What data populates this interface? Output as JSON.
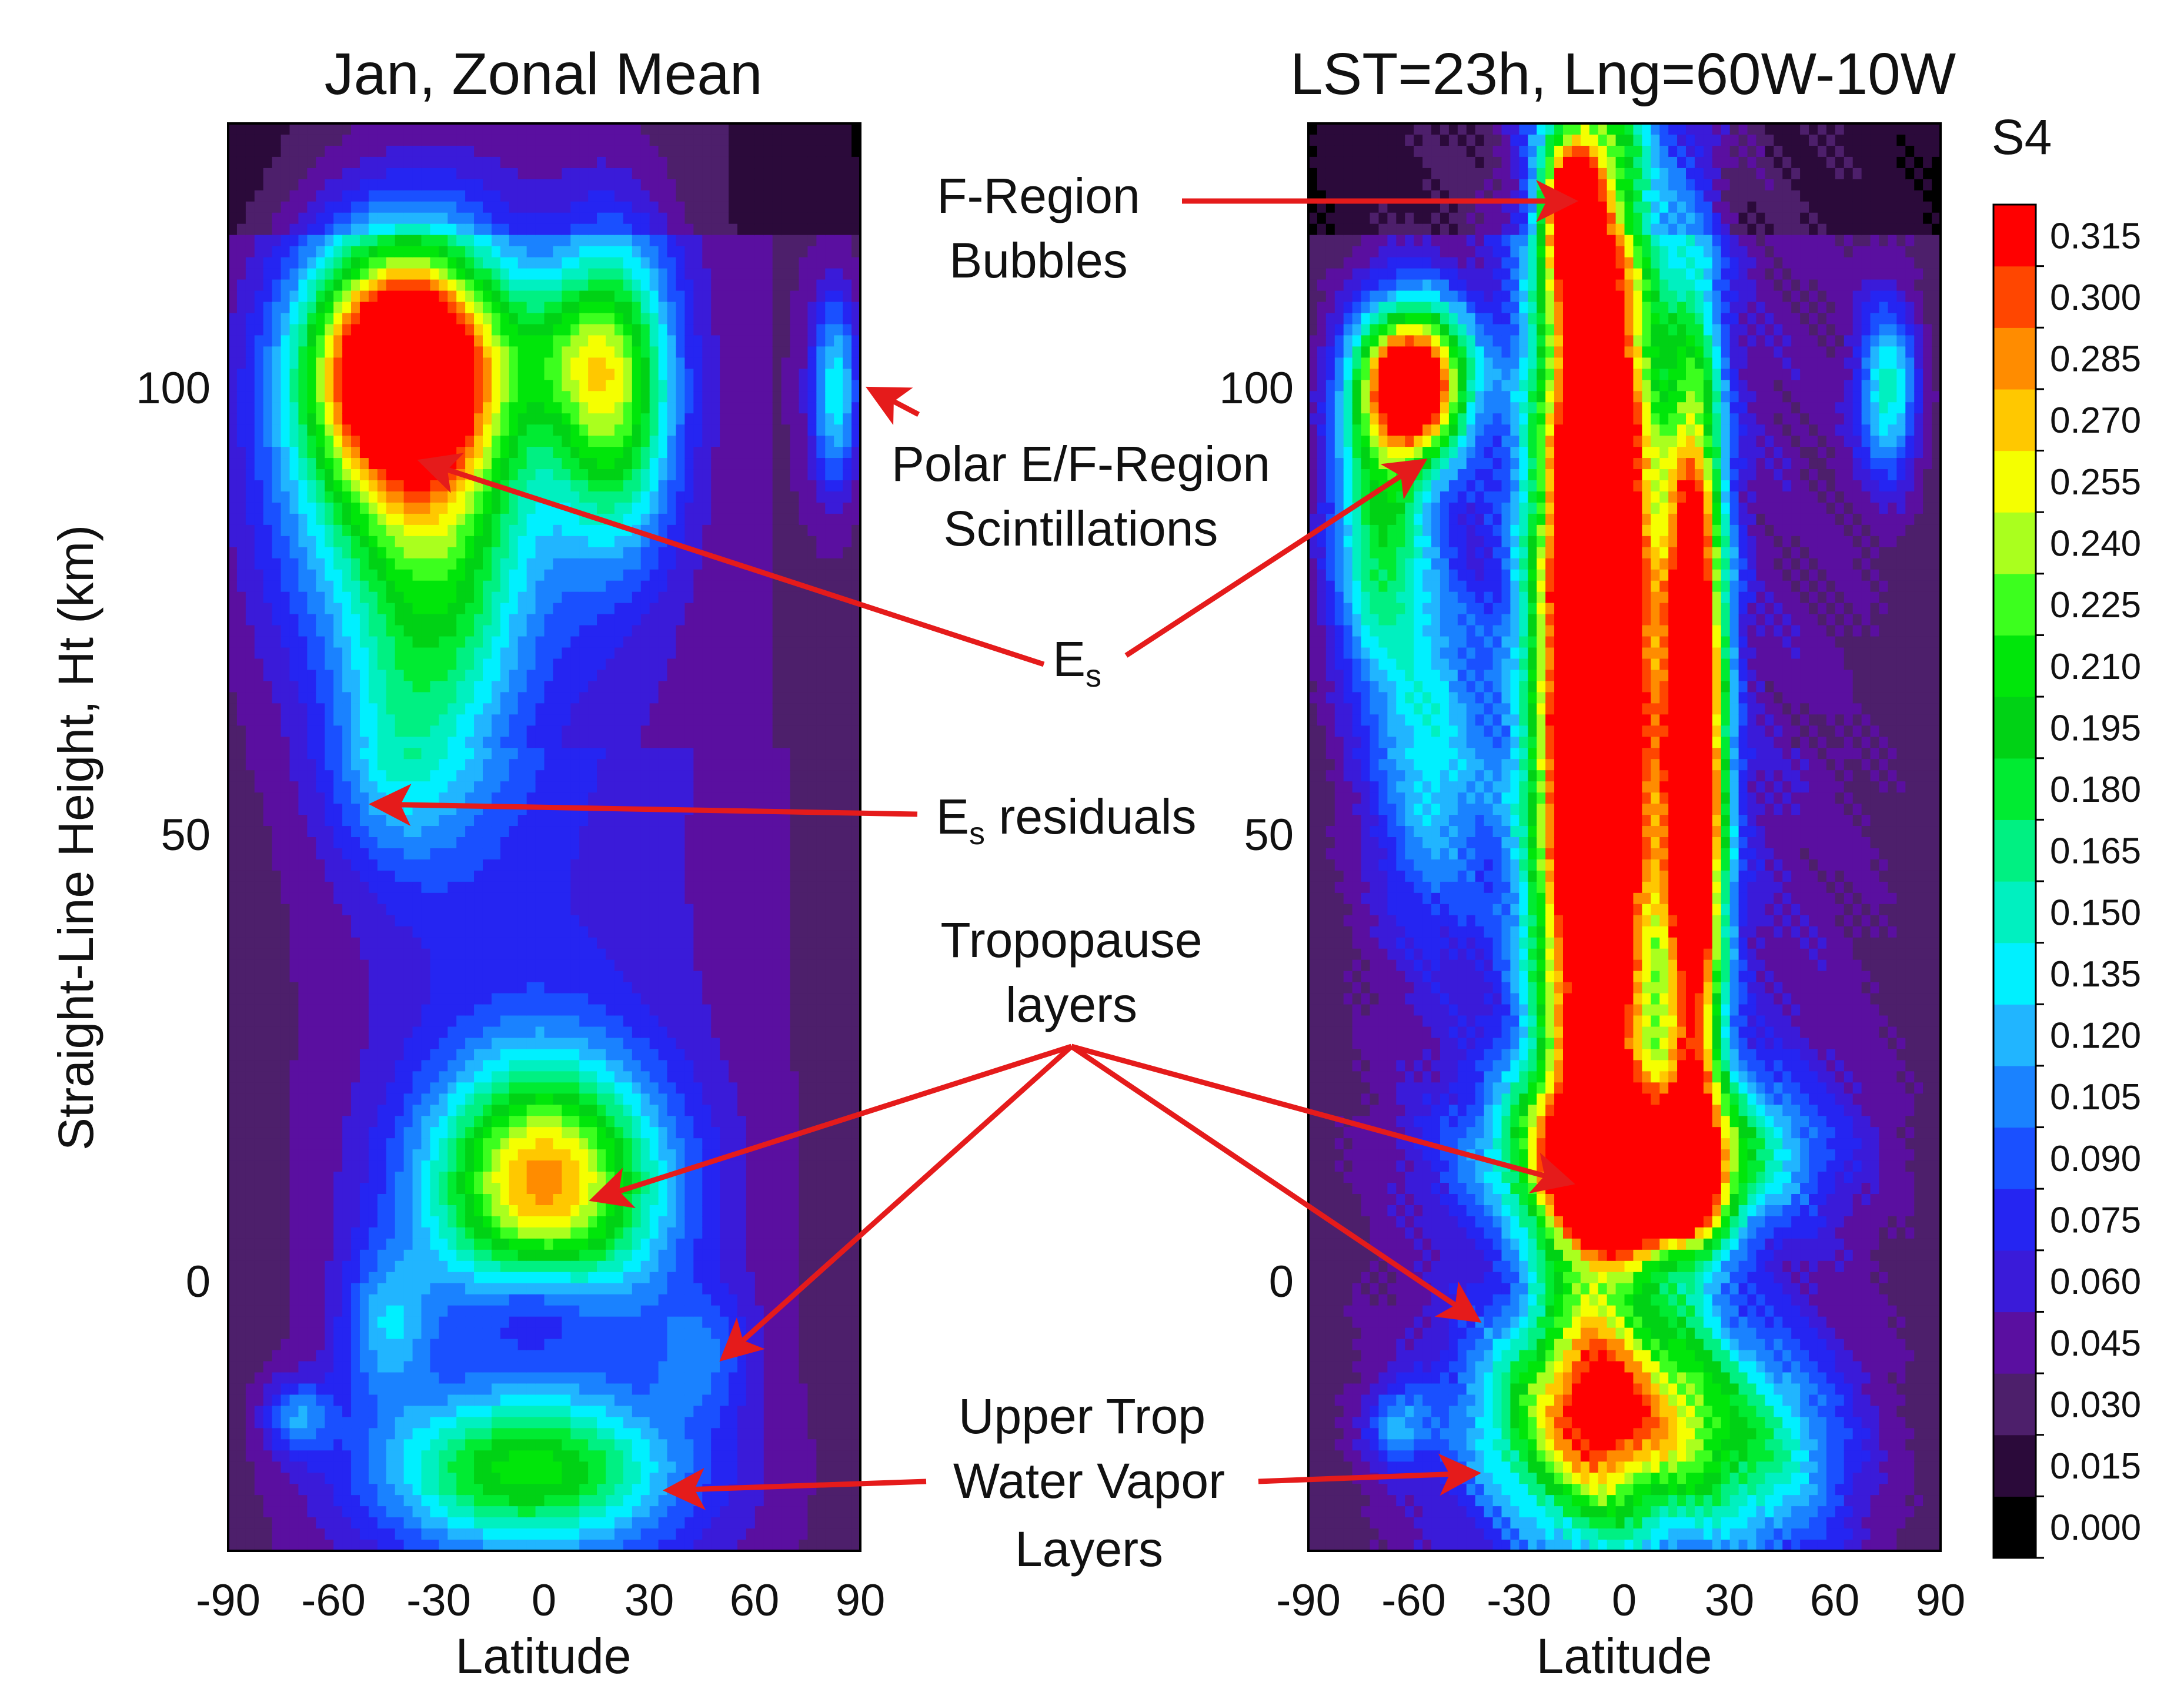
{
  "chart_data": [
    {
      "type": "heatmap",
      "title": "Jan, Zonal Mean",
      "xlabel": "Latitude",
      "ylabel": "Straight-Line Height, Ht (km)",
      "xlim": [
        -90,
        90
      ],
      "ylim": [
        -30,
        130
      ],
      "xticks": [
        "-90",
        "-60",
        "-30",
        "0",
        "30",
        "60",
        "90"
      ],
      "yticks": [
        "0",
        "50",
        "100"
      ],
      "blobs": [
        {
          "lat": -40,
          "ht": 103,
          "amp": 0.29,
          "sx": 18,
          "sy": 9
        },
        {
          "lat": -40,
          "ht": 92,
          "amp": 0.13,
          "sx": 28,
          "sy": 18
        },
        {
          "lat": -30,
          "ht": 75,
          "amp": 0.07,
          "sx": 16,
          "sy": 18
        },
        {
          "lat": 20,
          "ht": 100,
          "amp": 0.17,
          "sx": 12,
          "sy": 12
        },
        {
          "lat": 5,
          "ht": 104,
          "amp": 0.06,
          "sx": 12,
          "sy": 6
        },
        {
          "lat": 83,
          "ht": 100,
          "amp": 0.11,
          "sx": 5,
          "sy": 8
        },
        {
          "lat": -45,
          "ht": 58,
          "amp": 0.045,
          "sx": 12,
          "sy": 8
        },
        {
          "lat": 0,
          "ht": 10,
          "amp": 0.17,
          "sx": 24,
          "sy": 9
        },
        {
          "lat": 0,
          "ht": 16,
          "amp": 0.06,
          "sx": 20,
          "sy": 9
        },
        {
          "lat": -5,
          "ht": -21,
          "amp": 0.145,
          "sx": 30,
          "sy": 6
        },
        {
          "lat": -45,
          "ht": -5,
          "amp": 0.07,
          "sx": 9,
          "sy": 6
        },
        {
          "lat": 45,
          "ht": -8,
          "amp": 0.05,
          "sx": 10,
          "sy": 5
        },
        {
          "lat": -70,
          "ht": -15,
          "amp": 0.07,
          "sx": 7,
          "sy": 3
        }
      ],
      "sinks": [
        {
          "lat": -2,
          "ht": -2,
          "amp": 0.05,
          "sx": 12,
          "sy": 4
        }
      ]
    },
    {
      "type": "heatmap",
      "title": "LST=23h, Lng=60W-10W",
      "xlabel": "Latitude",
      "xlim": [
        -90,
        90
      ],
      "ylim": [
        -30,
        130
      ],
      "xticks": [
        "-90",
        "-60",
        "-30",
        "0",
        "30",
        "60",
        "90"
      ],
      "yticks": [
        "0",
        "50",
        "100"
      ],
      "blobs": [
        {
          "lat": -8,
          "ht": 70,
          "amp": 0.45,
          "sx": 12,
          "sy": 45
        },
        {
          "lat": 20,
          "ht": 60,
          "amp": 0.37,
          "sx": 6,
          "sy": 30
        },
        {
          "lat": -15,
          "ht": 120,
          "amp": 0.25,
          "sx": 5,
          "sy": 5
        },
        {
          "lat": -60,
          "ht": 101,
          "amp": 0.33,
          "sx": 11,
          "sy": 6
        },
        {
          "lat": -70,
          "ht": 85,
          "amp": 0.14,
          "sx": 10,
          "sy": 12
        },
        {
          "lat": -55,
          "ht": 60,
          "amp": 0.09,
          "sx": 12,
          "sy": 14
        },
        {
          "lat": 5,
          "ht": 10,
          "amp": 0.3,
          "sx": 14,
          "sy": 4
        },
        {
          "lat": 5,
          "ht": 15,
          "amp": 0.2,
          "sx": 30,
          "sy": 6
        },
        {
          "lat": -5,
          "ht": -15,
          "amp": 0.2,
          "sx": 26,
          "sy": 8
        },
        {
          "lat": 75,
          "ht": 100,
          "amp": 0.12,
          "sx": 6,
          "sy": 7
        },
        {
          "lat": 40,
          "ht": -20,
          "amp": 0.08,
          "sx": 18,
          "sy": 8
        },
        {
          "lat": -65,
          "ht": -16,
          "amp": 0.07,
          "sx": 6,
          "sy": 3
        }
      ]
    }
  ],
  "colorbar": {
    "label": "S4",
    "ticks": [
      "0.000",
      "0.015",
      "0.030",
      "0.045",
      "0.060",
      "0.075",
      "0.090",
      "0.105",
      "0.120",
      "0.135",
      "0.150",
      "0.165",
      "0.180",
      "0.195",
      "0.210",
      "0.225",
      "0.240",
      "0.255",
      "0.270",
      "0.285",
      "0.300",
      "0.315"
    ],
    "colors": [
      "#000000",
      "#2b0a3a",
      "#4d1f6b",
      "#5a0fa0",
      "#3a1bd9",
      "#2525f2",
      "#1a50ff",
      "#1a82ff",
      "#21b5ff",
      "#00f0ff",
      "#00f0c0",
      "#00f082",
      "#00eb32",
      "#00d215",
      "#00e60a",
      "#3cff1e",
      "#aaff1e",
      "#f5ff00",
      "#ffc800",
      "#ff8c00",
      "#ff4600",
      "#ff0000"
    ]
  },
  "annotations": {
    "f_region": [
      "F-Region",
      "Bubbles"
    ],
    "polar": [
      "Polar E/F-Region",
      "Scintillations"
    ],
    "es_main": "E",
    "es_sub": "s",
    "es_resid_main": "E",
    "es_resid_sub": "s",
    "es_resid_suffix": " residuals",
    "tropopause": [
      "Tropopause",
      "layers"
    ],
    "upper_trop": [
      "Upper Trop",
      "Water Vapor",
      "Layers"
    ]
  },
  "colors": {
    "arrow": "#e51b1b",
    "frame": "#000000"
  }
}
